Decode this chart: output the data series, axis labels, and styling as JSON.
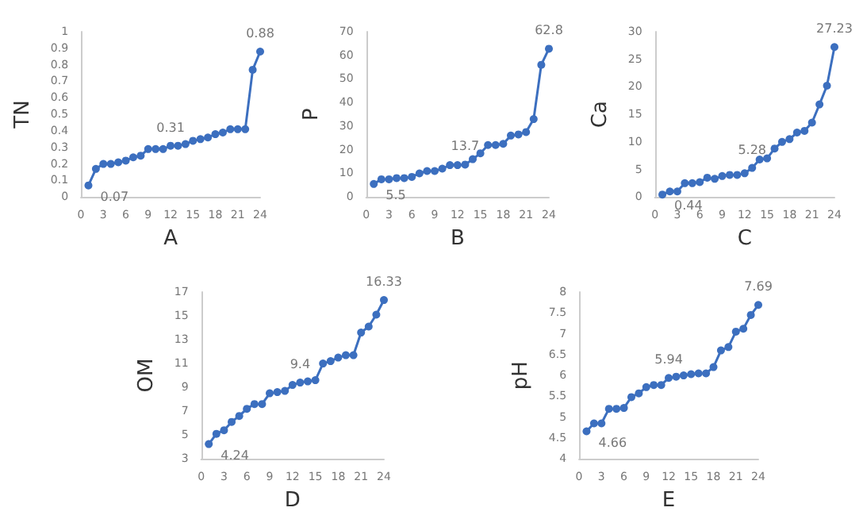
{
  "chart_data": [
    {
      "type": "line",
      "xlabel": "A",
      "ylabel": "TN",
      "x": [
        1,
        2,
        3,
        4,
        5,
        6,
        7,
        8,
        9,
        10,
        11,
        12,
        13,
        14,
        15,
        16,
        17,
        18,
        19,
        20,
        21,
        22,
        23,
        24
      ],
      "marker": "circle",
      "xlim": [
        0,
        24
      ],
      "xticks": [
        0,
        3,
        6,
        9,
        12,
        15,
        18,
        21,
        24
      ],
      "ylim": [
        0,
        1
      ],
      "yticks": [
        0,
        0.1,
        0.2,
        0.3,
        0.4,
        0.5,
        0.6,
        0.7,
        0.8,
        0.9,
        1
      ],
      "series": [
        {
          "color": "#3c6fbf",
          "values": [
            0.07,
            0.17,
            0.2,
            0.2,
            0.21,
            0.22,
            0.24,
            0.25,
            0.29,
            0.29,
            0.29,
            0.31,
            0.31,
            0.32,
            0.34,
            0.35,
            0.36,
            0.38,
            0.39,
            0.41,
            0.41,
            0.41,
            0.77,
            0.88
          ],
          "value_labels": [
            "0.07",
            null,
            null,
            null,
            null,
            null,
            null,
            null,
            null,
            null,
            null,
            "0.31",
            null,
            null,
            null,
            null,
            null,
            null,
            null,
            null,
            null,
            null,
            null,
            "0.88"
          ]
        }
      ]
    },
    {
      "type": "line",
      "xlabel": "B",
      "ylabel": "P",
      "x": [
        1,
        2,
        3,
        4,
        5,
        6,
        7,
        8,
        9,
        10,
        11,
        12,
        13,
        14,
        15,
        16,
        17,
        18,
        19,
        20,
        21,
        22,
        23,
        24
      ],
      "marker": "circle",
      "xlim": [
        0,
        24
      ],
      "xticks": [
        0,
        3,
        6,
        9,
        12,
        15,
        18,
        21,
        24
      ],
      "ylim": [
        0,
        70
      ],
      "yticks": [
        0,
        10,
        20,
        30,
        40,
        50,
        60,
        70
      ],
      "series": [
        {
          "color": "#3c6fbf",
          "values": [
            5.5,
            7.5,
            7.5,
            8,
            8,
            8.5,
            10,
            11,
            11,
            12,
            13.5,
            13.5,
            13.7,
            16,
            18.5,
            22,
            22,
            22.5,
            26,
            26.5,
            27.5,
            33,
            56,
            62.8
          ],
          "value_labels": [
            "5.5",
            null,
            null,
            null,
            null,
            null,
            null,
            null,
            null,
            null,
            null,
            null,
            "13.7",
            null,
            null,
            null,
            null,
            null,
            null,
            null,
            null,
            null,
            null,
            "62.8"
          ]
        }
      ]
    },
    {
      "type": "line",
      "xlabel": "C",
      "ylabel": "Ca",
      "x": [
        1,
        2,
        3,
        4,
        5,
        6,
        7,
        8,
        9,
        10,
        11,
        12,
        13,
        14,
        15,
        16,
        17,
        18,
        19,
        20,
        21,
        22,
        23,
        24
      ],
      "marker": "circle",
      "xlim": [
        0,
        24
      ],
      "xticks": [
        0,
        3,
        6,
        9,
        12,
        15,
        18,
        21,
        24
      ],
      "ylim": [
        0,
        30
      ],
      "yticks": [
        0,
        5,
        10,
        15,
        20,
        25,
        30
      ],
      "series": [
        {
          "color": "#3c6fbf",
          "values": [
            0.44,
            1,
            1,
            2.5,
            2.5,
            2.7,
            3.5,
            3.3,
            3.8,
            4,
            4,
            4.3,
            5.28,
            6.8,
            7,
            8.8,
            10,
            10.5,
            11.7,
            12,
            13.5,
            16.8,
            20.2,
            27.23
          ],
          "value_labels": [
            "0.44",
            null,
            null,
            null,
            null,
            null,
            null,
            null,
            null,
            null,
            null,
            null,
            "5.28",
            null,
            null,
            null,
            null,
            null,
            null,
            null,
            null,
            null,
            null,
            "27.23"
          ]
        }
      ]
    },
    {
      "type": "line",
      "xlabel": "D",
      "ylabel": "OM",
      "x": [
        1,
        2,
        3,
        4,
        5,
        6,
        7,
        8,
        9,
        10,
        11,
        12,
        13,
        14,
        15,
        16,
        17,
        18,
        19,
        20,
        21,
        22,
        23,
        24
      ],
      "marker": "circle",
      "xlim": [
        0,
        24
      ],
      "xticks": [
        0,
        3,
        6,
        9,
        12,
        15,
        18,
        21,
        24
      ],
      "ylim": [
        3,
        17
      ],
      "yticks": [
        3,
        5,
        7,
        9,
        11,
        13,
        15,
        17
      ],
      "series": [
        {
          "color": "#3c6fbf",
          "values": [
            4.24,
            5.1,
            5.4,
            6.1,
            6.6,
            7.2,
            7.6,
            7.6,
            8.5,
            8.6,
            8.7,
            9.2,
            9.4,
            9.5,
            9.6,
            11,
            11.2,
            11.5,
            11.7,
            11.7,
            13.6,
            14.1,
            15.1,
            16.33
          ],
          "value_labels": [
            "4.24",
            null,
            null,
            null,
            null,
            null,
            null,
            null,
            null,
            null,
            null,
            null,
            "9.4",
            null,
            null,
            null,
            null,
            null,
            null,
            null,
            null,
            null,
            null,
            "16.33"
          ]
        }
      ]
    },
    {
      "type": "line",
      "xlabel": "E",
      "ylabel": "pH",
      "x": [
        1,
        2,
        3,
        4,
        5,
        6,
        7,
        8,
        9,
        10,
        11,
        12,
        13,
        14,
        15,
        16,
        17,
        18,
        19,
        20,
        21,
        22,
        23,
        24
      ],
      "marker": "circle",
      "xlim": [
        0,
        24
      ],
      "xticks": [
        0,
        3,
        6,
        9,
        12,
        15,
        18,
        21,
        24
      ],
      "ylim": [
        4,
        8
      ],
      "yticks": [
        4,
        4.5,
        5,
        5.5,
        6,
        6.5,
        7,
        7.5,
        8
      ],
      "series": [
        {
          "color": "#3c6fbf",
          "values": [
            4.66,
            4.85,
            4.85,
            5.2,
            5.2,
            5.22,
            5.48,
            5.57,
            5.72,
            5.77,
            5.77,
            5.94,
            5.97,
            6,
            6.03,
            6.05,
            6.05,
            6.2,
            6.6,
            6.68,
            7.05,
            7.12,
            7.45,
            7.69
          ],
          "value_labels": [
            "4.66",
            null,
            null,
            null,
            null,
            null,
            null,
            null,
            null,
            null,
            null,
            "5.94",
            null,
            null,
            null,
            null,
            null,
            null,
            null,
            null,
            null,
            null,
            null,
            "7.69"
          ]
        }
      ]
    }
  ]
}
